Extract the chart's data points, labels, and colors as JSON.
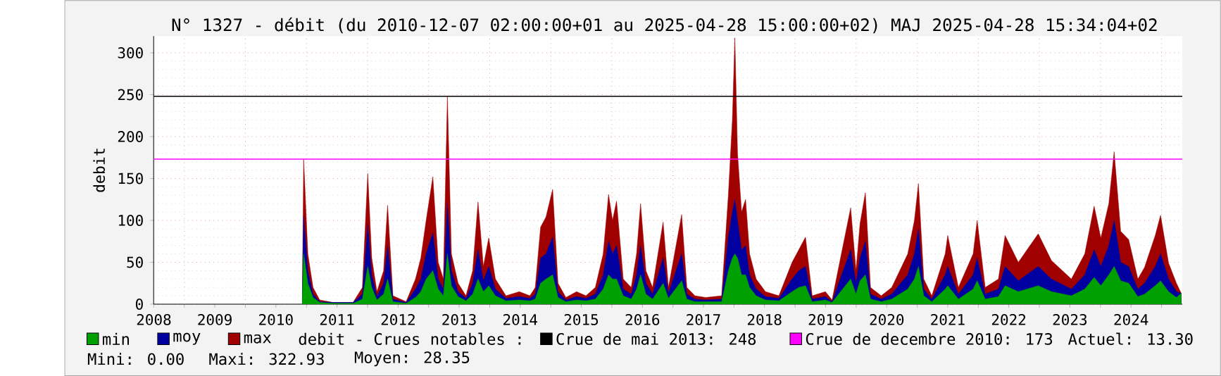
{
  "chart_data": {
    "type": "area",
    "title": "N° 1327 - débit (du 2010-12-07 02:00:00+01 au 2025-04-28 15:00:00+02) MAJ 2025-04-28 15:34:04+02",
    "ylabel": "debit",
    "x": [
      "2010-12-07",
      "2010-12-15",
      "2011-01-09",
      "2011-02-09",
      "2011-03-21",
      "2011-06-09",
      "2011-10-06",
      "2011-12-01",
      "2012-01-02",
      "2012-01-26",
      "2012-02-26",
      "2012-04-06",
      "2012-04-30",
      "2012-06-01",
      "2012-08-19",
      "2012-10-14",
      "2012-11-15",
      "2012-12-17",
      "2013-01-26",
      "2013-02-27",
      "2013-03-30",
      "2013-04-23",
      "2013-05-17",
      "2013-06-26",
      "2013-08-12",
      "2013-09-21",
      "2013-10-23",
      "2013-11-24",
      "2013-12-26",
      "2014-02-04",
      "2014-04-08",
      "2014-06-27",
      "2014-08-29",
      "2014-09-30",
      "2014-11-01",
      "2014-12-03",
      "2015-01-12",
      "2015-02-13",
      "2015-04-01",
      "2015-06-04",
      "2015-07-30",
      "2015-09-24",
      "2015-11-10",
      "2015-12-12",
      "2016-01-05",
      "2016-01-29",
      "2016-03-09",
      "2016-04-26",
      "2016-05-28",
      "2016-06-21",
      "2016-07-23",
      "2016-09-01",
      "2016-11-03",
      "2016-12-05",
      "2017-02-22",
      "2017-03-25",
      "2017-05-12",
      "2017-07-15",
      "2017-10-19",
      "2017-11-28",
      "2017-12-22",
      "2018-01-06",
      "2018-01-22",
      "2018-02-15",
      "2018-03-11",
      "2018-04-04",
      "2018-05-13",
      "2018-07-08",
      "2018-09-26",
      "2018-12-14",
      "2019-01-23",
      "2019-03-04",
      "2019-04-13",
      "2019-07-01",
      "2019-08-10",
      "2019-11-29",
      "2019-12-31",
      "2020-01-24",
      "2020-02-25",
      "2020-03-27",
      "2020-05-30",
      "2020-08-01",
      "2020-11-05",
      "2020-12-15",
      "2021-01-08",
      "2021-02-09",
      "2021-03-29",
      "2021-06-17",
      "2021-07-02",
      "2021-09-04",
      "2021-12-01",
      "2021-12-25",
      "2022-02-11",
      "2022-05-01",
      "2022-06-10",
      "2022-08-28",
      "2022-12-25",
      "2023-03-14",
      "2023-07-11",
      "2023-09-29",
      "2023-11-24",
      "2024-01-03",
      "2024-02-20",
      "2024-03-23",
      "2024-05-01",
      "2024-06-18",
      "2024-08-12",
      "2024-09-21",
      "2024-11-24",
      "2024-12-26",
      "2025-02-12",
      "2025-03-31",
      "2025-04-28T15:00"
    ],
    "series": [
      {
        "name": "max",
        "color": "#a00000",
        "values": [
          10,
          173,
          60,
          20,
          5,
          2,
          2,
          20,
          156,
          55,
          15,
          40,
          118,
          10,
          3,
          30,
          55,
          100,
          152,
          50,
          30,
          248,
          60,
          25,
          10,
          40,
          122,
          45,
          79,
          30,
          10,
          15,
          10,
          20,
          92,
          104,
          137,
          25,
          8,
          15,
          10,
          20,
          60,
          131,
          100,
          123,
          30,
          20,
          60,
          120,
          40,
          20,
          98,
          20,
          107,
          20,
          10,
          8,
          10,
          130,
          220,
          318,
          180,
          110,
          125,
          60,
          30,
          15,
          10,
          50,
          65,
          80,
          10,
          15,
          5,
          115,
          40,
          96,
          133,
          20,
          10,
          20,
          60,
          100,
          144,
          30,
          10,
          60,
          82,
          20,
          60,
          100,
          20,
          30,
          82,
          50,
          84,
          52,
          30,
          60,
          117,
          79,
          120,
          182,
          87,
          77,
          30,
          44,
          82,
          106,
          49,
          25,
          13
        ]
      },
      {
        "name": "moy",
        "color": "#0000a0",
        "values": [
          8,
          105,
          40,
          12,
          3,
          2,
          2,
          12,
          95,
          35,
          9,
          25,
          70,
          6,
          2,
          18,
          30,
          60,
          85,
          30,
          18,
          120,
          40,
          15,
          7,
          25,
          65,
          28,
          45,
          18,
          7,
          9,
          7,
          12,
          55,
          60,
          80,
          15,
          5,
          9,
          7,
          12,
          35,
          75,
          60,
          70,
          18,
          12,
          35,
          70,
          25,
          12,
          55,
          13,
          60,
          12,
          6,
          5,
          6,
          80,
          110,
          125,
          100,
          65,
          70,
          35,
          18,
          9,
          7,
          30,
          40,
          45,
          6,
          9,
          3,
          65,
          25,
          55,
          75,
          12,
          6,
          12,
          35,
          60,
          90,
          18,
          6,
          35,
          45,
          12,
          35,
          55,
          12,
          18,
          45,
          28,
          45,
          30,
          18,
          35,
          65,
          45,
          70,
          100,
          50,
          45,
          18,
          25,
          45,
          60,
          30,
          15,
          13
        ]
      },
      {
        "name": "min",
        "color": "#00a000",
        "values": [
          5,
          60,
          25,
          8,
          2,
          1,
          1,
          6,
          45,
          20,
          5,
          12,
          30,
          3,
          1,
          8,
          15,
          30,
          40,
          18,
          10,
          60,
          22,
          9,
          4,
          12,
          30,
          15,
          22,
          10,
          4,
          5,
          4,
          6,
          25,
          30,
          35,
          8,
          3,
          5,
          4,
          6,
          18,
          35,
          30,
          30,
          10,
          6,
          18,
          35,
          12,
          6,
          25,
          7,
          28,
          6,
          3,
          3,
          3,
          40,
          55,
          60,
          55,
          35,
          35,
          20,
          10,
          5,
          4,
          15,
          20,
          22,
          3,
          5,
          2,
          30,
          12,
          28,
          35,
          6,
          3,
          6,
          18,
          30,
          45,
          10,
          3,
          18,
          22,
          6,
          18,
          28,
          6,
          9,
          22,
          15,
          22,
          15,
          10,
          18,
          32,
          22,
          35,
          45,
          28,
          25,
          9,
          12,
          22,
          28,
          15,
          8,
          13
        ]
      }
    ],
    "xlim": [
      "2008-07-01",
      "2025-05-05"
    ],
    "xticks": [
      {
        "value": "2008-07-02",
        "label": "2008"
      },
      {
        "value": "2009-01-01",
        "label": null
      },
      {
        "value": "2009-07-02",
        "label": "2009"
      },
      {
        "value": "2010-01-01",
        "label": null
      },
      {
        "value": "2010-07-02",
        "label": "2010"
      },
      {
        "value": "2011-01-01",
        "label": null
      },
      {
        "value": "2011-07-02",
        "label": "2011"
      },
      {
        "value": "2012-01-01",
        "label": null
      },
      {
        "value": "2012-07-02",
        "label": "2012"
      },
      {
        "value": "2013-01-01",
        "label": null
      },
      {
        "value": "2013-07-02",
        "label": "2013"
      },
      {
        "value": "2014-01-01",
        "label": null
      },
      {
        "value": "2014-07-02",
        "label": "2014"
      },
      {
        "value": "2015-01-01",
        "label": null
      },
      {
        "value": "2015-07-02",
        "label": "2015"
      },
      {
        "value": "2016-01-01",
        "label": null
      },
      {
        "value": "2016-07-02",
        "label": "2016"
      },
      {
        "value": "2017-01-01",
        "label": null
      },
      {
        "value": "2017-07-02",
        "label": "2017"
      },
      {
        "value": "2018-01-01",
        "label": null
      },
      {
        "value": "2018-07-02",
        "label": "2018"
      },
      {
        "value": "2019-01-01",
        "label": null
      },
      {
        "value": "2019-07-02",
        "label": "2019"
      },
      {
        "value": "2020-01-01",
        "label": null
      },
      {
        "value": "2020-07-02",
        "label": "2020"
      },
      {
        "value": "2021-01-01",
        "label": null
      },
      {
        "value": "2021-07-02",
        "label": "2021"
      },
      {
        "value": "2022-01-01",
        "label": null
      },
      {
        "value": "2022-07-02",
        "label": "2022"
      },
      {
        "value": "2023-01-01",
        "label": null
      },
      {
        "value": "2023-07-02",
        "label": "2023"
      },
      {
        "value": "2024-01-01",
        "label": null
      },
      {
        "value": "2024-07-02",
        "label": "2024"
      },
      {
        "value": "2025-01-01",
        "label": null
      }
    ],
    "ylim": [
      0,
      320
    ],
    "yticks": [
      0,
      50,
      100,
      150,
      200,
      250,
      300
    ],
    "grid": true,
    "legend": "bottom",
    "ref_lines": [
      {
        "axis": "y",
        "value": 248,
        "label": "Crue de mai 2013: 248",
        "color": "#000000"
      },
      {
        "axis": "y",
        "value": 173,
        "label": "Crue de decembre 2010: 173",
        "color": "#ff00ff"
      }
    ],
    "annotations": [
      "debit - Crues notables :",
      "Actuel: 13.30",
      "Mini: 0.00",
      "Maxi: 322.93",
      "Moyen: 28.35"
    ]
  }
}
